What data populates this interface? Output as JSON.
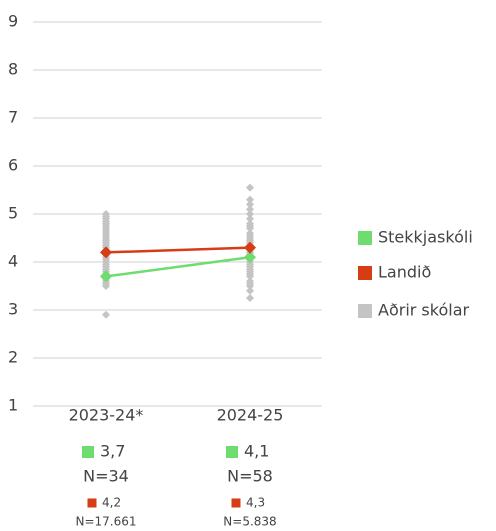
{
  "chart_data": {
    "type": "line",
    "categories": [
      "2023-24*",
      "2024-25"
    ],
    "ylim": [
      1,
      9
    ],
    "yticks": [
      1,
      2,
      3,
      4,
      5,
      6,
      7,
      8,
      9
    ],
    "grid": true,
    "legend": "right",
    "series": [
      {
        "name": "Stekkjaskóli",
        "type": "line",
        "color": "#6edc6e",
        "values": [
          3.7,
          4.1
        ],
        "value_labels": [
          "3,7",
          "4,1"
        ],
        "n_labels": [
          "N=34",
          "N=58"
        ]
      },
      {
        "name": "Landið",
        "type": "line",
        "color": "#d63d14",
        "values": [
          4.2,
          4.3
        ],
        "value_labels": [
          "4,2",
          "4,3"
        ],
        "n_labels": [
          "N=17.661",
          "N=5.838"
        ]
      },
      {
        "name": "Aðrir skólar",
        "type": "scatter",
        "color": "#c4c4c4",
        "values": [
          [
            2.9,
            3.5,
            3.55,
            3.6,
            3.65,
            3.7,
            3.75,
            3.8,
            3.85,
            3.9,
            3.95,
            4.0,
            4.05,
            4.1,
            4.15,
            4.2,
            4.25,
            4.3,
            4.35,
            4.4,
            4.45,
            4.5,
            4.55,
            4.6,
            4.65,
            4.7,
            4.75,
            4.8,
            4.85,
            4.9,
            4.95,
            5.0
          ],
          [
            3.25,
            3.4,
            3.5,
            3.55,
            3.6,
            3.7,
            3.75,
            3.8,
            3.85,
            3.9,
            3.95,
            4.0,
            4.05,
            4.1,
            4.15,
            4.2,
            4.25,
            4.3,
            4.35,
            4.4,
            4.45,
            4.5,
            4.55,
            4.6,
            4.7,
            4.75,
            4.8,
            4.9,
            5.0,
            5.1,
            5.2,
            5.3,
            5.55
          ]
        ]
      }
    ]
  }
}
